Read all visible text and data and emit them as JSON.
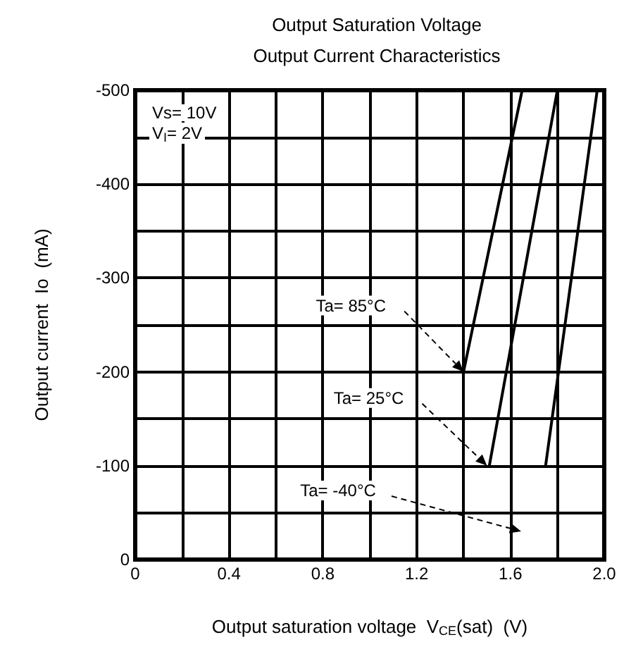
{
  "chart_data": {
    "type": "line",
    "title": "Output Saturation Voltage",
    "subtitle": "Output Current Characteristics",
    "xlabel": "Output saturation voltage  V$_{CE}$(sat)  (V)",
    "ylabel": "Output current  Io  (mA)",
    "series": [
      {
        "color": "#000000",
        "x": [
          1.4,
          1.65
        ],
        "values": [
          -200,
          -500
        ]
      },
      {
        "color": "#000000",
        "x": [
          1.51,
          1.8
        ],
        "values": [
          -100,
          -500
        ]
      },
      {
        "color": "#000000",
        "x": [
          1.75,
          1.97
        ],
        "values": [
          -100,
          -500
        ]
      }
    ],
    "xlim": [
      0,
      2.0
    ],
    "xticks": [
      0,
      {
        "value": 0.2,
        "label": null
      },
      0.4,
      {
        "value": 0.6,
        "label": null
      },
      0.8,
      {
        "value": 1.0,
        "label": null
      },
      1.2,
      {
        "value": 1.4,
        "label": null
      },
      1.6,
      {
        "value": 1.8,
        "label": null
      },
      {
        "value": 2.0,
        "label": "2.0"
      }
    ],
    "ylim": [
      0,
      -500
    ],
    "yticks": [
      0,
      {
        "value": -50,
        "label": null
      },
      -100,
      {
        "value": -150,
        "label": null
      },
      -200,
      {
        "value": -250,
        "label": null
      },
      -300,
      {
        "value": -350,
        "label": null
      },
      -400,
      {
        "value": -450,
        "label": null
      },
      -500
    ],
    "annotations": [
      "Vs= 10V",
      "V$_{I}$= 2V",
      {
        "text": "Ta= 85°C",
        "x": 1.4,
        "y": -200
      },
      {
        "text": "Ta= 25°C",
        "x": 1.5,
        "y": -100
      },
      "Ta= -40°C"
    ],
    "grid": true,
    "marker": "none",
    "line_style": "solid"
  }
}
